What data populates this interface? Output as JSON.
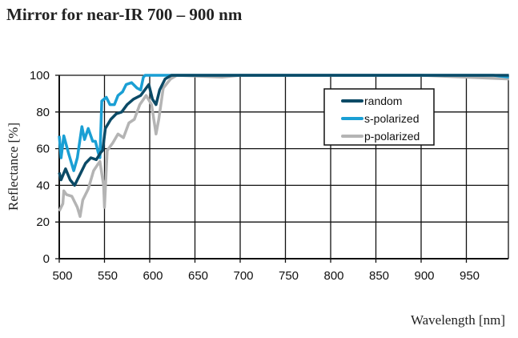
{
  "chart_data": {
    "type": "line",
    "title": "Mirror for near-IR 700 – 900 nm",
    "xlabel": "Wavelength [nm]",
    "ylabel": "Reflectance [%]",
    "xlim": [
      500,
      997
    ],
    "ylim": [
      0,
      100
    ],
    "xticks": [
      500,
      550,
      600,
      650,
      700,
      750,
      800,
      850,
      900,
      950
    ],
    "yticks": [
      0,
      20,
      40,
      60,
      80,
      100
    ],
    "grid": true,
    "legend_position": "top-right",
    "series": [
      {
        "name": "random",
        "color": "#0b4a66",
        "x": [
          500,
          502,
          507,
          512,
          517,
          523,
          529,
          535,
          541,
          546,
          548,
          551,
          557,
          563,
          569,
          575,
          582,
          590,
          599,
          603,
          607,
          611,
          617,
          624,
          650,
          700,
          800,
          900,
          997
        ],
        "y": [
          47,
          43,
          49,
          43,
          40,
          46,
          52,
          55,
          54,
          58,
          59,
          71,
          76,
          79,
          80,
          84,
          87,
          89,
          95,
          87,
          84,
          92,
          98,
          100,
          100,
          100,
          100,
          100,
          100
        ]
      },
      {
        "name": "s-polarized",
        "color": "#1a9fd4",
        "x": [
          500,
          502,
          505,
          510,
          516,
          520,
          525,
          528,
          532,
          537,
          540,
          543,
          545,
          547,
          552,
          556,
          561,
          565,
          570,
          574,
          580,
          586,
          590,
          593,
          595,
          650,
          700,
          800,
          900,
          980,
          997
        ],
        "y": [
          67,
          55,
          67,
          58,
          48,
          55,
          72,
          65,
          71,
          64,
          64,
          58,
          55,
          86,
          88,
          84,
          84,
          89,
          91,
          95,
          96,
          93,
          92,
          99,
          100,
          100,
          100,
          100,
          100,
          100,
          99
        ]
      },
      {
        "name": "p-polarized",
        "color": "#b4b4b4",
        "x": [
          500,
          504,
          505,
          508,
          514,
          520,
          523,
          526,
          532,
          538,
          542,
          545,
          549,
          550,
          553,
          559,
          565,
          571,
          577,
          583,
          589,
          596,
          602,
          607,
          610,
          615,
          623,
          630,
          680,
          700,
          800,
          900,
          997
        ],
        "y": [
          26,
          30,
          37,
          35,
          34,
          28,
          23,
          32,
          38,
          48,
          51,
          53,
          40,
          28,
          59,
          63,
          68,
          66,
          74,
          76,
          84,
          89,
          84,
          68,
          76,
          93,
          98,
          100,
          99,
          100,
          100,
          100,
          98
        ]
      }
    ]
  }
}
